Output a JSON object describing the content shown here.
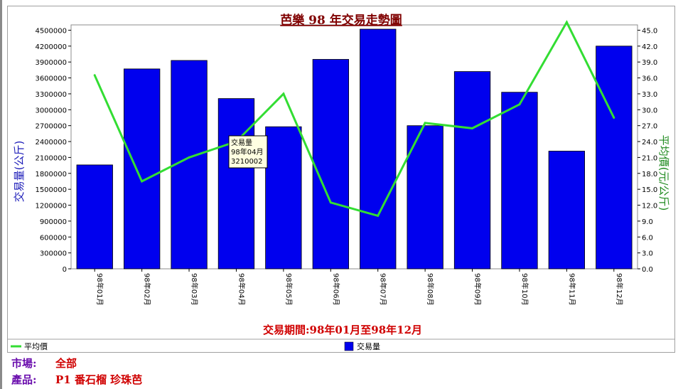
{
  "chart_data": {
    "type": "bar+line",
    "title": "芭樂 98 年交易走勢圖",
    "xlabel": "交易期間:98年01月至98年12月",
    "ylabel_left": "交易量(公斤)",
    "ylabel_right": "平均價(元/公斤)",
    "categories": [
      "98年01月",
      "98年02月",
      "98年03月",
      "98年04月",
      "98年05月",
      "98年06月",
      "98年07月",
      "98年08月",
      "98年09月",
      "98年10月",
      "98年11月",
      "98年12月"
    ],
    "ylim_left": [
      0,
      4600000
    ],
    "yticks_left": [
      0,
      300000,
      600000,
      900000,
      1200000,
      1500000,
      1800000,
      2100000,
      2400000,
      2700000,
      3000000,
      3300000,
      3600000,
      3900000,
      4200000,
      4500000
    ],
    "ylim_right": [
      0,
      46.0
    ],
    "yticks_right": [
      "0.0",
      "3.0",
      "6.0",
      "9.0",
      "12.0",
      "15.0",
      "18.0",
      "21.0",
      "24.0",
      "27.0",
      "30.0",
      "33.0",
      "36.0",
      "39.0",
      "42.0",
      "45.0"
    ],
    "series": [
      {
        "name": "交易量",
        "type": "bar",
        "axis": "left",
        "color": "#0000ee",
        "values": [
          1960000,
          3770000,
          3930000,
          3210002,
          2680000,
          3950000,
          4520000,
          2700000,
          3720000,
          3330000,
          2220000,
          4200000
        ]
      },
      {
        "name": "平均價",
        "type": "line",
        "axis": "right",
        "color": "#33dd33",
        "values": [
          36.5,
          16.5,
          21.0,
          24.0,
          33.0,
          12.5,
          10.0,
          27.5,
          26.5,
          31.0,
          46.5,
          28.5
        ]
      }
    ],
    "tooltip": {
      "label": "交易量",
      "period": "98年04月",
      "value": "3210002"
    },
    "legend": [
      {
        "name": "平均價",
        "kind": "line",
        "color": "#33dd33"
      },
      {
        "name": "交易量",
        "kind": "bar",
        "color": "#0000ee"
      }
    ],
    "legend_position": "bottom",
    "grid": false
  },
  "info": {
    "market_label": "市場:",
    "market_value": "全部",
    "product_label": "產品:",
    "product_value": "P1 番石榴 珍珠芭"
  }
}
